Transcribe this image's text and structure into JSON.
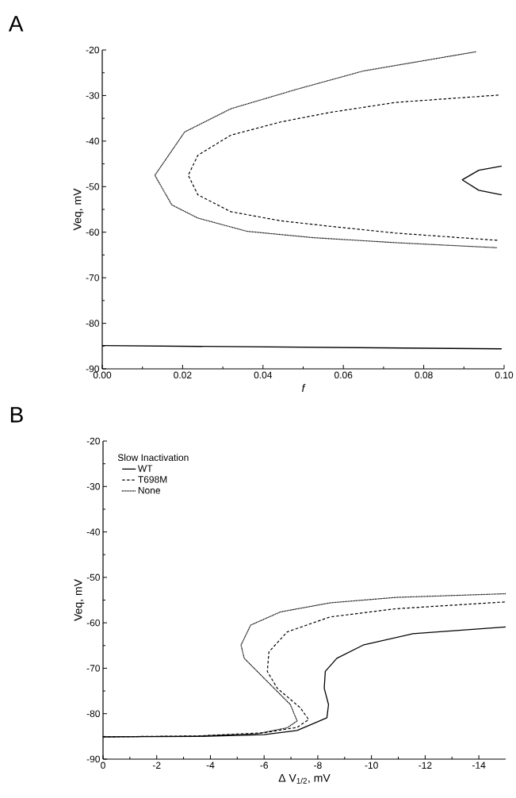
{
  "chart_data": [
    {
      "type": "line",
      "title": "A",
      "xlabel": "f",
      "ylabel": "Veq, mV",
      "xlim": [
        0,
        0.1
      ],
      "ylim": [
        -90,
        -20
      ],
      "xticks": [
        {
          "value": 0,
          "label": "0.00"
        },
        {
          "value": 0.02,
          "label": "0.02"
        },
        {
          "value": 0.04,
          "label": "0.04"
        },
        {
          "value": 0.06,
          "label": "0.06"
        },
        {
          "value": 0.08,
          "label": "0.08"
        },
        {
          "value": 0.1,
          "label": "0.10"
        }
      ],
      "yticks": [
        -90,
        -80,
        -70,
        -60,
        -50,
        -40,
        -30,
        -20
      ],
      "legend": false,
      "series": [
        {
          "color": "#000000",
          "line_style": "solid",
          "x": [
            0,
            0.0994,
            null,
            0.0994,
            0.0937,
            0.0896,
            0.0937,
            0.0994
          ],
          "values": [
            -84.9,
            -85.6,
            null,
            -45.5,
            -46.4,
            -48.5,
            -50.8,
            -51.8
          ]
        },
        {
          "color": "#000000",
          "line_style": "dashed",
          "x": [
            0.0986,
            0.0731,
            0.0567,
            0.0444,
            0.032,
            0.0238,
            0.0214,
            0.0238,
            0.032,
            0.0444,
            0.0567,
            0.0731,
            0.0986
          ],
          "values": [
            -29.9,
            -31.5,
            -33.7,
            -35.8,
            -38.7,
            -43.1,
            -47.5,
            -51.8,
            -55.5,
            -57.5,
            -58.7,
            -60.2,
            -61.8
          ]
        },
        {
          "color": "#000000",
          "line_style": "dotted",
          "x": [
            0.0929,
            0.065,
            0.0485,
            0.032,
            0.0205,
            0.0131,
            0.0173,
            0.0238,
            0.036,
            0.0526,
            0.0731,
            0.0982
          ],
          "values": [
            -20.4,
            -24.6,
            -28.6,
            -32.9,
            -38,
            -47.5,
            -54,
            -56.9,
            -59.8,
            -61.2,
            -62.3,
            -63.4
          ]
        }
      ]
    },
    {
      "type": "line",
      "title": "B",
      "xlabel": "Δ V$_{1/2}$, mV",
      "ylabel": "Veq, mV",
      "xlim": [
        0,
        -15
      ],
      "ylim": [
        -90,
        -20
      ],
      "xticks": [
        0,
        -2,
        -4,
        -6,
        -8,
        -10,
        -12,
        -14
      ],
      "yticks": [
        -90,
        -80,
        -70,
        -60,
        -50,
        -40,
        -30,
        -20
      ],
      "legend": "top left",
      "legend_title": "Slow Inactivation",
      "series": [
        {
          "name": "WT",
          "color": "#000000",
          "line_style": "solid",
          "x": [
            0,
            -3.53,
            -6,
            -7.23,
            -8.34,
            -8.4,
            -8.24,
            -8.28,
            -8.71,
            -9.69,
            -11.54,
            -15
          ],
          "values": [
            -85.1,
            -85,
            -84.6,
            -83.7,
            -80.9,
            -78,
            -74.4,
            -70.7,
            -67.8,
            -64.9,
            -62.4,
            -60.9
          ]
        },
        {
          "name": "T698M",
          "color": "#000000",
          "line_style": "dashed",
          "x": [
            0,
            -3.53,
            -6,
            -7.23,
            -7.66,
            -7.35,
            -6.49,
            -6.12,
            -6.18,
            -6.86,
            -8.46,
            -10.92,
            -14.99
          ],
          "values": [
            -85.1,
            -84.9,
            -84.2,
            -83,
            -81.3,
            -78.7,
            -74.4,
            -70.7,
            -66.4,
            -62,
            -58.7,
            -56.9,
            -55.4
          ]
        },
        {
          "name": "None",
          "color": "#000000",
          "line_style": "dotted",
          "x": [
            0,
            -3.53,
            -5.75,
            -6.86,
            -7.23,
            -6.98,
            -6,
            -5.26,
            -5.14,
            -5.5,
            -6.61,
            -8.46,
            -10.92,
            -14.99
          ],
          "values": [
            -85.1,
            -84.9,
            -84.4,
            -83.1,
            -81.6,
            -78,
            -72.2,
            -67.8,
            -64.9,
            -60.5,
            -57.6,
            -55.6,
            -54.4,
            -53.6
          ]
        }
      ]
    }
  ]
}
